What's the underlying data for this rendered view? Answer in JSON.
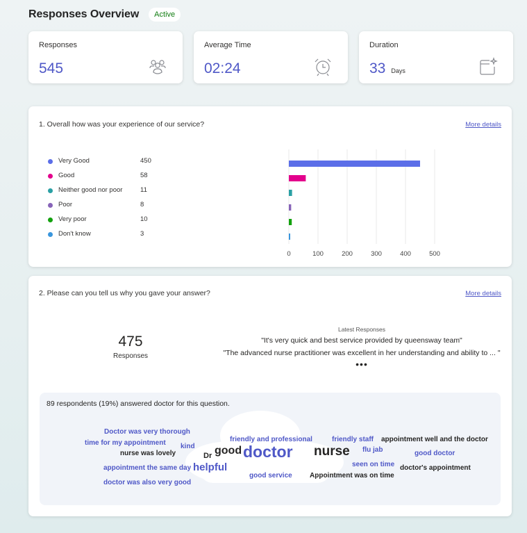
{
  "header": {
    "title": "Responses Overview",
    "status": "Active"
  },
  "stats": [
    {
      "label": "Responses",
      "value": "545",
      "unit": "",
      "icon": "people-icon"
    },
    {
      "label": "Average Time",
      "value": "02:24",
      "unit": "",
      "icon": "alarm-clock-icon"
    },
    {
      "label": "Duration",
      "value": "33",
      "unit": "Days",
      "icon": "calendar-sparkle-icon"
    }
  ],
  "colors": {
    "accent": "#4f58c7",
    "active": "#107c10"
  },
  "q1": {
    "title": "1. Overall how was your experience of our service?",
    "more": "More details",
    "chart_data": {
      "type": "bar",
      "orientation": "horizontal",
      "categories": [
        "Very Good",
        "Good",
        "Neither good nor poor",
        "Poor",
        "Very poor",
        "Don't know"
      ],
      "values": [
        450,
        58,
        11,
        8,
        10,
        3
      ],
      "colors": [
        "#5b6ee8",
        "#e3008c",
        "#2aa0a4",
        "#8764b8",
        "#13a10e",
        "#3a96dd"
      ],
      "xlim": [
        0,
        500
      ],
      "xticks": [
        "0",
        "100",
        "200",
        "300",
        "400",
        "500"
      ],
      "grid": true,
      "legend": "left"
    }
  },
  "q2": {
    "title": "2. Please can you tell us why you gave your answer?",
    "more": "More details",
    "count": "475",
    "count_label": "Responses",
    "latest_heading": "Latest Responses",
    "latest": [
      "\"It's very quick and best service provided by queensway team\"",
      "\"The advanced nurse practitioner was excellent in her understanding and ability to ... \""
    ],
    "ellipsis": "•••",
    "wordcloud_heading": "89 respondents (19%) answered doctor for this question.",
    "words": [
      {
        "text": "Doctor was very thorough",
        "color": "#4f58c7"
      },
      {
        "text": "time for my appointment",
        "color": "#4f58c7"
      },
      {
        "text": "kind",
        "color": "#4f58c7"
      },
      {
        "text": "nurse was lovely",
        "color": "#252423"
      },
      {
        "text": "appointment the same day",
        "color": "#4f58c7"
      },
      {
        "text": "helpful",
        "color": "#4f58c7"
      },
      {
        "text": "doctor was also very good",
        "color": "#4f58c7"
      },
      {
        "text": "Dr",
        "color": "#252423"
      },
      {
        "text": "good",
        "color": "#252423"
      },
      {
        "text": "doctor",
        "color": "#4f58c7"
      },
      {
        "text": "friendly and professional",
        "color": "#4f58c7"
      },
      {
        "text": "good service",
        "color": "#4f58c7"
      },
      {
        "text": "nurse",
        "color": "#252423"
      },
      {
        "text": "friendly staff",
        "color": "#4f58c7"
      },
      {
        "text": "flu jab",
        "color": "#4f58c7"
      },
      {
        "text": "seen on time",
        "color": "#4f58c7"
      },
      {
        "text": "Appointment was on time",
        "color": "#252423"
      },
      {
        "text": "appointment well and the doctor",
        "color": "#252423"
      },
      {
        "text": "good doctor",
        "color": "#4f58c7"
      },
      {
        "text": "doctor's appointment",
        "color": "#252423"
      }
    ]
  }
}
